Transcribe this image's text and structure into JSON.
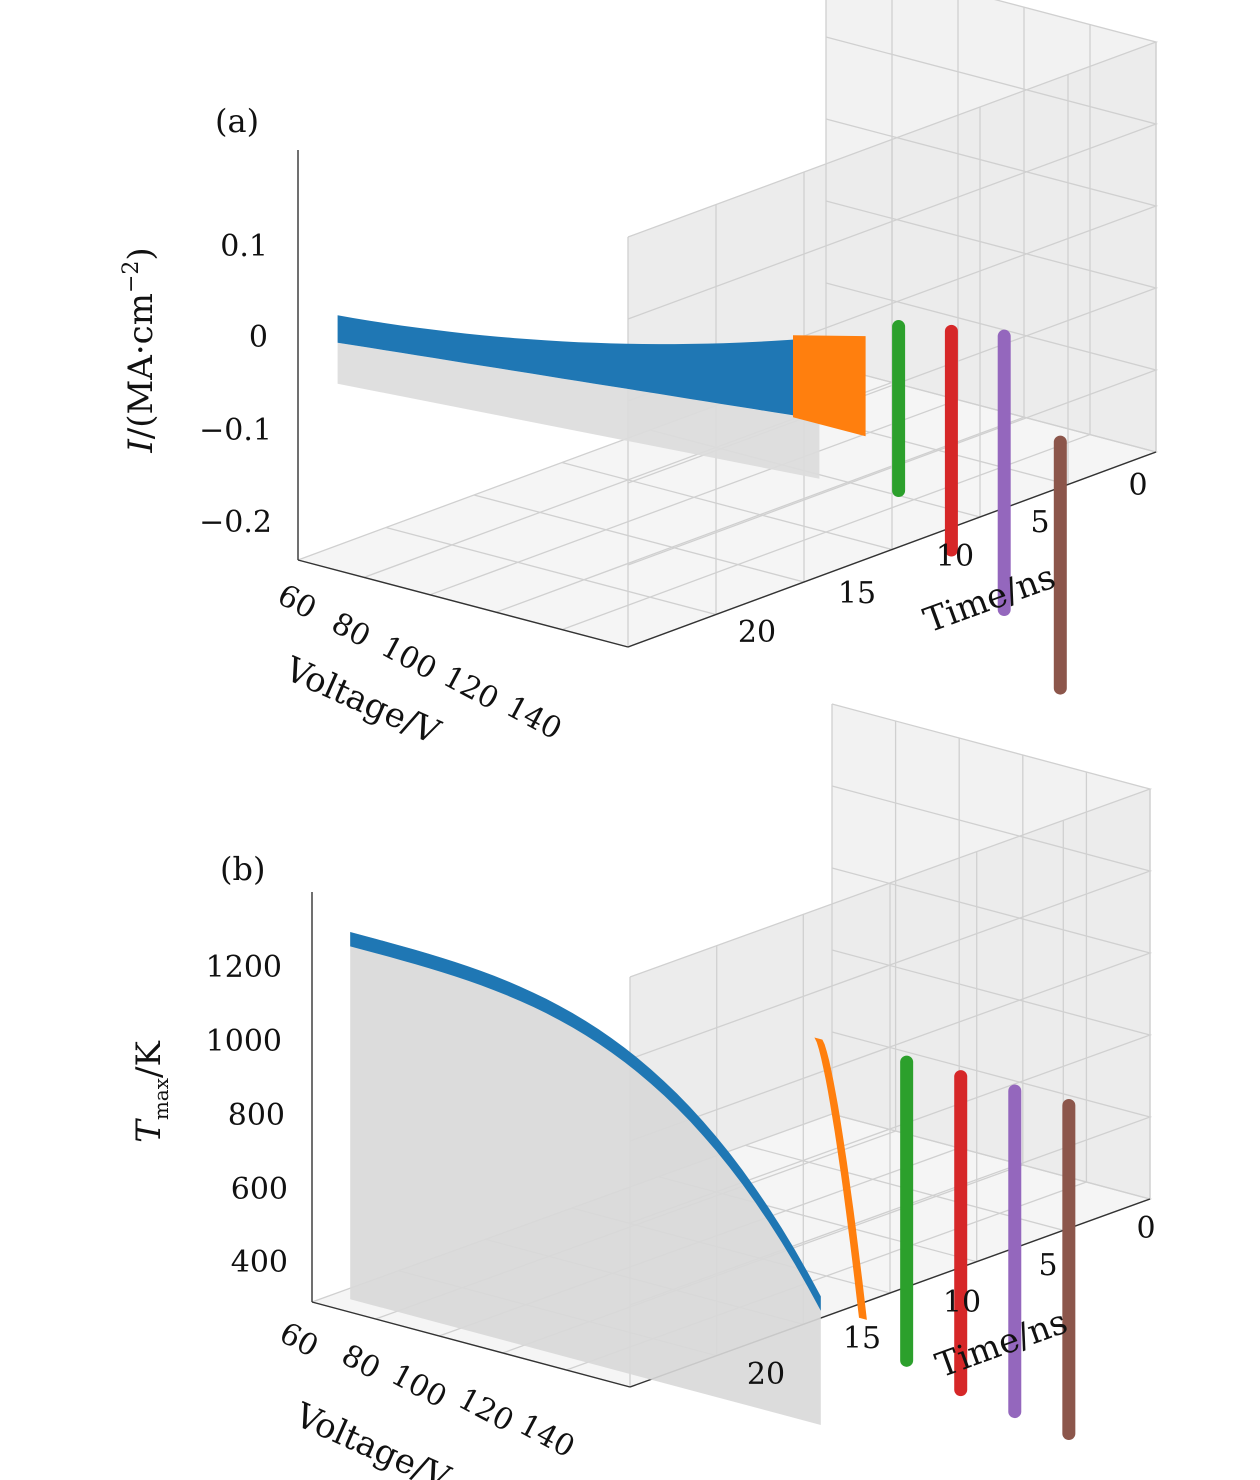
{
  "chart_data": [
    {
      "type": "3d-ribbon",
      "panel_label": "(a)",
      "zlabel": "I/(MA·cm⁻²)",
      "xlabel": "Voltage/V",
      "ylabel": "Time/ns",
      "zlabel_var": "I",
      "zlabel_rest": "/(MA·cm",
      "zlabel_exp": "−2",
      "zlabel_close": ")",
      "z_ticks": [
        "0.1",
        "0",
        "−0.1",
        "−0.2"
      ],
      "x_ticks": [
        "60",
        "80",
        "100",
        "120",
        "140"
      ],
      "y_ticks": [
        "20",
        "15",
        "10",
        "5",
        "0"
      ],
      "zlim": [
        -0.25,
        0.2
      ],
      "voltage_range": [
        60,
        150
      ],
      "time_range": [
        0,
        24
      ],
      "series_colors": [
        "#1f77b4",
        "#ff7f0e",
        "#2ca02c",
        "#d62728",
        "#9467bd",
        "#8c564b"
      ],
      "series": [
        {
          "kind": "ribbon",
          "time": 20,
          "voltage": [
            60,
            150
          ],
          "value_low": [
            0.0,
            0.055
          ],
          "value_high": [
            0.03,
            0.145
          ]
        },
        {
          "kind": "band",
          "time": 15,
          "value_low": 0.05,
          "value_high": 0.16
        },
        {
          "kind": "band",
          "time": 10,
          "value_low": 0.0,
          "value_high": 0.18
        },
        {
          "kind": "band",
          "time": 7,
          "value_low": -0.05,
          "value_high": 0.19
        },
        {
          "kind": "band",
          "time": 3.5,
          "value_low": -0.1,
          "value_high": 0.2
        },
        {
          "kind": "band",
          "time": 0.5,
          "value_low": -0.17,
          "value_high": 0.1
        }
      ]
    },
    {
      "type": "3d-ribbon",
      "panel_label": "(b)",
      "zlabel": "Tmax/K",
      "xlabel": "Voltage/V",
      "ylabel": "Time/ns",
      "zlabel_var": "T",
      "zlabel_sub": "max",
      "zlabel_rest": "/K",
      "z_ticks": [
        "1200",
        "1000",
        "800",
        "600",
        "400"
      ],
      "x_ticks": [
        "60",
        "80",
        "100",
        "120",
        "140"
      ],
      "y_ticks": [
        "20",
        "15",
        "10",
        "5",
        "0"
      ],
      "zlim": [
        350,
        1450
      ],
      "voltage_range": [
        60,
        150
      ],
      "time_range": [
        0,
        24
      ],
      "series_colors": [
        "#1f77b4",
        "#ff7f0e",
        "#2ca02c",
        "#d62728",
        "#9467bd",
        "#8c564b"
      ],
      "series": [
        {
          "kind": "curve",
          "time": 20,
          "voltage": [
            60,
            150
          ],
          "value_start": 1370,
          "value_end": 730
        },
        {
          "kind": "band",
          "time": 15,
          "value_low": 700,
          "value_high": 1420
        },
        {
          "kind": "band",
          "time": 10,
          "value_low": 620,
          "value_high": 1420
        },
        {
          "kind": "band",
          "time": 7,
          "value_low": 580,
          "value_high": 1420
        },
        {
          "kind": "band",
          "time": 3.5,
          "value_low": 560,
          "value_high": 1420
        },
        {
          "kind": "band",
          "time": 0.5,
          "value_low": 540,
          "value_high": 1420
        }
      ]
    }
  ]
}
